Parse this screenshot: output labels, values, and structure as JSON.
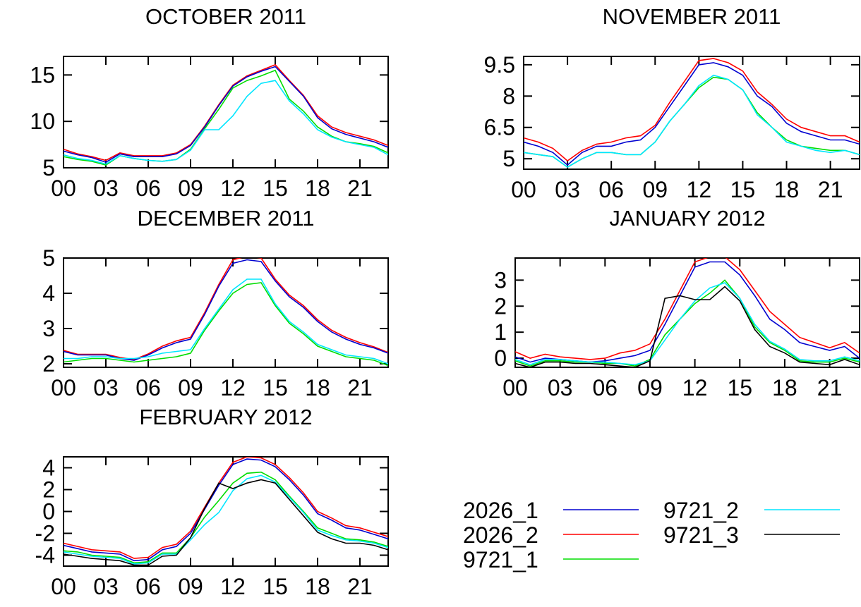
{
  "colors": {
    "2026_1": "#0000d0",
    "2026_2": "#ff0000",
    "9721_1": "#00dd00",
    "9721_2": "#00e6ff",
    "9721_3": "#000000"
  },
  "legend": {
    "placement": "bottom-right",
    "entries": [
      "2026_1",
      "2026_2",
      "9721_1",
      "9721_2",
      "9721_3"
    ]
  },
  "chart_data": [
    {
      "type": "line",
      "title": "OCTOBER 2011",
      "xlabel": "",
      "ylabel": "",
      "xlim": [
        0,
        23
      ],
      "ylim": [
        5,
        17
      ],
      "xticks": [
        "00",
        "03",
        "06",
        "09",
        "12",
        "15",
        "18",
        "21"
      ],
      "yticks": [
        5,
        10,
        15
      ],
      "series": [
        {
          "name": "2026_1",
          "values": [
            6.8,
            6.4,
            6.1,
            5.6,
            6.5,
            6.2,
            6.2,
            6.2,
            6.5,
            7.4,
            9.4,
            11.7,
            13.8,
            14.8,
            15.4,
            15.9,
            14.3,
            12.7,
            10.4,
            9.2,
            8.6,
            8.2,
            7.8,
            7.2
          ]
        },
        {
          "name": "2026_2",
          "values": [
            7.0,
            6.5,
            6.2,
            5.8,
            6.6,
            6.3,
            6.3,
            6.3,
            6.6,
            7.5,
            9.5,
            11.8,
            13.9,
            14.9,
            15.5,
            16.1,
            14.4,
            12.8,
            10.6,
            9.4,
            8.8,
            8.4,
            8.0,
            7.4
          ]
        },
        {
          "name": "9721_1",
          "values": [
            6.2,
            5.9,
            5.7,
            5.3,
            6.3,
            6.0,
            5.8,
            5.7,
            5.9,
            7.0,
            9.2,
            11.3,
            13.6,
            14.4,
            14.9,
            15.5,
            12.4,
            11.1,
            9.4,
            8.4,
            7.8,
            7.6,
            7.3,
            6.6
          ]
        },
        {
          "name": "9721_2",
          "values": [
            6.4,
            6.0,
            5.8,
            5.4,
            6.3,
            6.0,
            5.8,
            5.7,
            5.9,
            6.9,
            9.1,
            9.1,
            10.6,
            12.7,
            14.1,
            14.4,
            12.2,
            10.8,
            9.1,
            8.3,
            7.8,
            7.5,
            7.2,
            6.4
          ]
        }
      ]
    },
    {
      "type": "line",
      "title": "NOVEMBER 2011",
      "xlabel": "",
      "ylabel": "",
      "xlim": [
        0,
        23
      ],
      "ylim": [
        4.5,
        9.9
      ],
      "xticks": [
        "00",
        "03",
        "06",
        "09",
        "12",
        "15",
        "18",
        "21"
      ],
      "yticks": [
        "5",
        "6.5",
        "8",
        "9.5"
      ],
      "series": [
        {
          "name": "2026_1",
          "values": [
            5.8,
            5.6,
            5.3,
            4.7,
            5.3,
            5.6,
            5.6,
            5.8,
            5.9,
            6.5,
            7.5,
            8.5,
            9.5,
            9.6,
            9.4,
            9.0,
            8.0,
            7.5,
            6.7,
            6.3,
            6.1,
            5.9,
            5.9,
            5.7
          ]
        },
        {
          "name": "2026_2",
          "values": [
            6.0,
            5.8,
            5.5,
            4.9,
            5.4,
            5.7,
            5.8,
            6.0,
            6.1,
            6.6,
            7.7,
            8.7,
            9.7,
            9.8,
            9.6,
            9.2,
            8.2,
            7.6,
            6.9,
            6.5,
            6.3,
            6.1,
            6.1,
            5.8
          ]
        },
        {
          "name": "9721_1",
          "values": [
            5.3,
            5.2,
            5.1,
            4.6,
            5.0,
            5.3,
            5.3,
            5.2,
            5.2,
            5.8,
            6.8,
            7.6,
            8.4,
            8.9,
            8.8,
            8.3,
            7.2,
            6.5,
            5.9,
            5.6,
            5.5,
            5.4,
            5.4,
            5.2
          ]
        },
        {
          "name": "9721_2",
          "values": [
            5.3,
            5.2,
            5.1,
            4.6,
            5.0,
            5.3,
            5.3,
            5.2,
            5.2,
            5.8,
            6.8,
            7.6,
            8.5,
            9.0,
            8.8,
            8.3,
            7.1,
            6.5,
            5.8,
            5.6,
            5.4,
            5.3,
            5.4,
            5.2
          ]
        }
      ]
    },
    {
      "type": "line",
      "title": "DECEMBER 2011",
      "xlabel": "",
      "ylabel": "",
      "xlim": [
        0,
        23
      ],
      "ylim": [
        1.9,
        5
      ],
      "xticks": [
        "00",
        "03",
        "06",
        "09",
        "12",
        "15",
        "18",
        "21"
      ],
      "yticks": [
        2,
        3,
        4,
        5
      ],
      "series": [
        {
          "name": "2026_1",
          "values": [
            2.35,
            2.25,
            2.25,
            2.25,
            2.15,
            2.1,
            2.25,
            2.45,
            2.6,
            2.7,
            3.4,
            4.2,
            4.85,
            4.95,
            4.9,
            4.35,
            3.9,
            3.6,
            3.2,
            2.9,
            2.7,
            2.55,
            2.45,
            2.3
          ]
        },
        {
          "name": "2026_2",
          "values": [
            2.38,
            2.27,
            2.27,
            2.27,
            2.18,
            2.12,
            2.28,
            2.5,
            2.65,
            2.75,
            3.45,
            4.25,
            4.95,
            5.05,
            5.0,
            4.4,
            3.95,
            3.65,
            3.25,
            2.95,
            2.75,
            2.6,
            2.48,
            2.32
          ]
        },
        {
          "name": "9721_1",
          "values": [
            2.05,
            2.1,
            2.15,
            2.15,
            2.1,
            2.05,
            2.1,
            2.15,
            2.2,
            2.3,
            2.95,
            3.5,
            4.0,
            4.25,
            4.3,
            3.65,
            3.15,
            2.85,
            2.5,
            2.35,
            2.2,
            2.15,
            2.1,
            1.95
          ]
        },
        {
          "name": "9721_2",
          "values": [
            2.15,
            2.15,
            2.2,
            2.2,
            2.15,
            2.15,
            2.2,
            2.3,
            2.35,
            2.4,
            3.0,
            3.55,
            4.1,
            4.4,
            4.4,
            3.7,
            3.2,
            2.9,
            2.55,
            2.4,
            2.25,
            2.2,
            2.15,
            2.0
          ]
        }
      ]
    },
    {
      "type": "line",
      "title": "JANUARY 2012",
      "xlabel": "",
      "ylabel": "",
      "xlim": [
        0,
        23
      ],
      "ylim": [
        -0.35,
        3.85
      ],
      "xticks": [
        "00",
        "03",
        "06",
        "09",
        "12",
        "15",
        "18",
        "21"
      ],
      "yticks": [
        0,
        1,
        2,
        3
      ],
      "series": [
        {
          "name": "2026_1",
          "values": [
            0.05,
            -0.15,
            0.0,
            -0.05,
            -0.1,
            -0.15,
            -0.1,
            0.0,
            0.1,
            0.3,
            1.3,
            2.4,
            3.5,
            3.7,
            3.7,
            3.2,
            2.4,
            1.5,
            1.1,
            0.6,
            0.45,
            0.3,
            0.45,
            0.0
          ]
        },
        {
          "name": "2026_2",
          "values": [
            0.25,
            0.0,
            0.15,
            0.05,
            0.0,
            -0.05,
            0.0,
            0.2,
            0.3,
            0.55,
            1.5,
            2.6,
            3.7,
            3.9,
            3.9,
            3.4,
            2.6,
            1.8,
            1.3,
            0.8,
            0.6,
            0.4,
            0.6,
            0.2
          ]
        },
        {
          "name": "9721_1",
          "values": [
            -0.1,
            -0.3,
            -0.1,
            -0.1,
            -0.15,
            -0.15,
            -0.2,
            -0.2,
            -0.3,
            -0.05,
            0.9,
            1.5,
            2.1,
            2.5,
            3.0,
            2.3,
            1.2,
            0.6,
            0.3,
            -0.1,
            -0.15,
            -0.15,
            0.0,
            -0.15
          ]
        },
        {
          "name": "9721_2",
          "values": [
            -0.05,
            -0.25,
            -0.05,
            -0.05,
            -0.1,
            -0.15,
            -0.15,
            -0.2,
            -0.25,
            -0.1,
            0.7,
            1.5,
            2.2,
            2.7,
            2.9,
            2.3,
            1.3,
            0.65,
            0.35,
            -0.05,
            -0.1,
            -0.1,
            0.05,
            -0.1
          ]
        },
        {
          "name": "9721_3",
          "values": [
            -0.2,
            -0.35,
            -0.15,
            -0.15,
            -0.2,
            -0.2,
            -0.25,
            -0.3,
            -0.35,
            -0.1,
            2.3,
            2.4,
            2.25,
            2.25,
            2.75,
            2.2,
            1.1,
            0.45,
            0.2,
            -0.15,
            -0.2,
            -0.25,
            -0.05,
            -0.25
          ]
        }
      ]
    },
    {
      "type": "line",
      "title": "FEBRUARY 2012",
      "xlabel": "",
      "ylabel": "",
      "xlim": [
        0,
        23
      ],
      "ylim": [
        -5,
        5
      ],
      "xticks": [
        "00",
        "03",
        "06",
        "09",
        "12",
        "15",
        "18",
        "21"
      ],
      "yticks": [
        -4,
        -2,
        0,
        2,
        4
      ],
      "series": [
        {
          "name": "2026_1",
          "values": [
            -3.1,
            -3.4,
            -3.7,
            -3.8,
            -3.9,
            -4.5,
            -4.4,
            -3.5,
            -3.2,
            -2.0,
            0.2,
            2.4,
            4.3,
            4.8,
            4.7,
            4.1,
            2.9,
            1.5,
            -0.2,
            -0.8,
            -1.5,
            -1.7,
            -2.1,
            -2.5
          ]
        },
        {
          "name": "2026_2",
          "values": [
            -2.9,
            -3.2,
            -3.5,
            -3.6,
            -3.7,
            -4.3,
            -4.2,
            -3.3,
            -3.0,
            -1.8,
            0.4,
            2.6,
            4.5,
            5.0,
            4.9,
            4.3,
            3.1,
            1.7,
            0.0,
            -0.6,
            -1.3,
            -1.5,
            -1.9,
            -2.3
          ]
        },
        {
          "name": "9721_1",
          "values": [
            -3.6,
            -3.7,
            -4.0,
            -4.1,
            -4.2,
            -4.7,
            -4.6,
            -3.8,
            -3.8,
            -2.4,
            -0.5,
            1.0,
            2.6,
            3.5,
            3.6,
            2.9,
            1.4,
            0.0,
            -1.5,
            -2.0,
            -2.5,
            -2.6,
            -2.8,
            -3.2
          ]
        },
        {
          "name": "9721_2",
          "values": [
            -3.7,
            -3.9,
            -4.1,
            -4.2,
            -4.3,
            -4.8,
            -4.7,
            -3.9,
            -3.9,
            -2.6,
            -1.2,
            -0.1,
            1.9,
            3.0,
            3.3,
            2.7,
            1.3,
            -0.1,
            -1.7,
            -2.2,
            -2.6,
            -2.7,
            -2.9,
            -3.3
          ]
        },
        {
          "name": "9721_3",
          "values": [
            -3.9,
            -4.1,
            -4.3,
            -4.4,
            -4.5,
            -4.9,
            -4.9,
            -4.1,
            -4.0,
            -2.4,
            0.3,
            2.6,
            2.1,
            2.6,
            2.9,
            2.6,
            1.1,
            -0.4,
            -1.9,
            -2.5,
            -2.9,
            -2.9,
            -3.1,
            -3.5
          ]
        }
      ]
    }
  ]
}
